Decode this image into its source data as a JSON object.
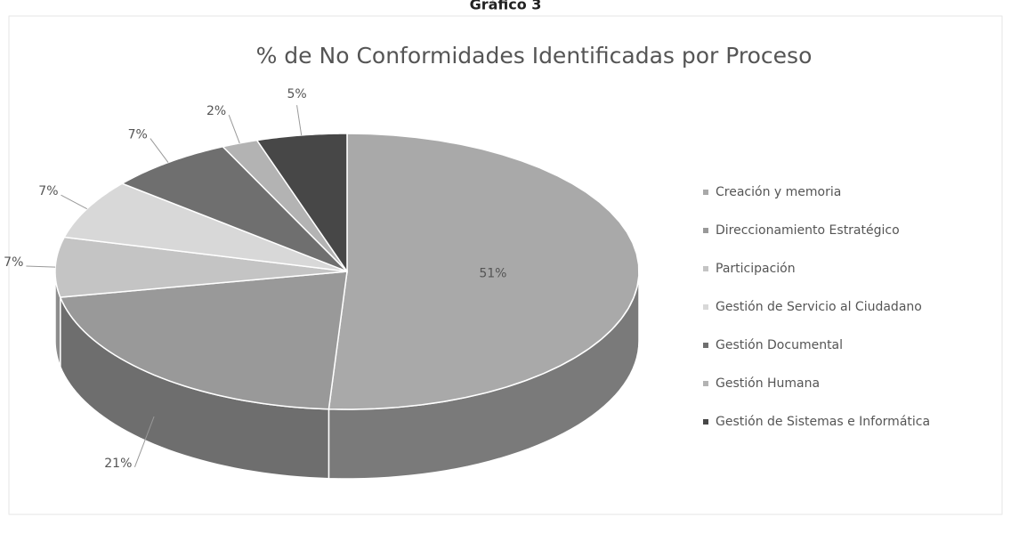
{
  "chart_data": {
    "type": "pie3d",
    "heading": "Gráfico 3",
    "title": "% de No Conformidades Identificadas por Proceso",
    "categories": [
      "Creación y memoria",
      "Direccionamiento Estratégico",
      "Participación",
      "Gestión de Servicio al Ciudadano",
      "Gestión Documental",
      "Gestión Humana",
      "Gestión de Sistemas e Informática"
    ],
    "values": [
      51,
      21,
      7,
      7,
      7,
      2,
      5
    ],
    "value_labels": [
      "51%",
      "21%",
      "7%",
      "7%",
      "7%",
      "2%",
      "5%"
    ],
    "colors": [
      "#a9a9a9",
      "#999999",
      "#c4c4c4",
      "#d8d8d8",
      "#6f6f6f",
      "#b3b3b3",
      "#474747"
    ],
    "legend": "right"
  }
}
